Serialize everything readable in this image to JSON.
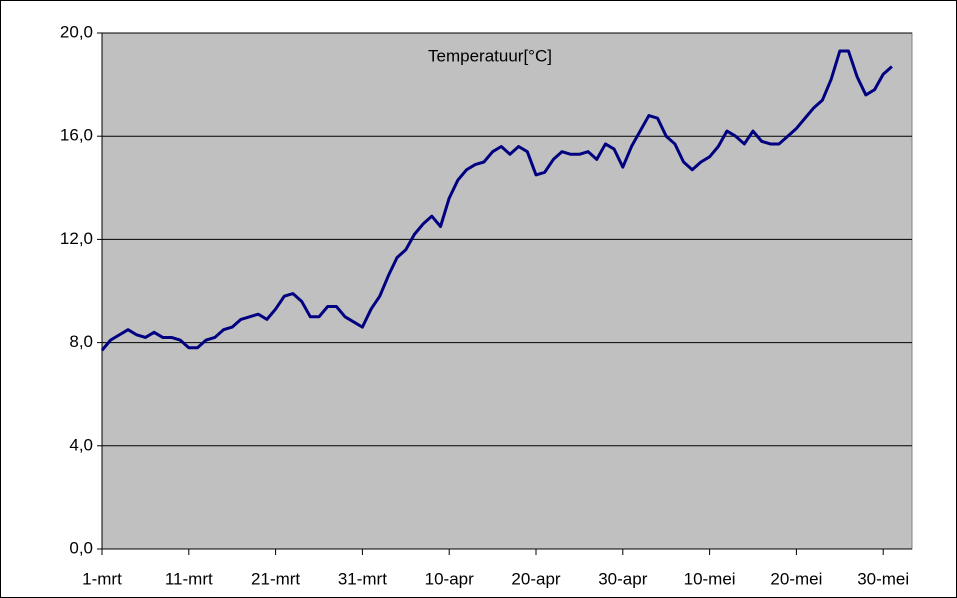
{
  "chart_data": {
    "type": "line",
    "title": "Temperatuur[°C]",
    "categories": [
      "1-mrt",
      null,
      null,
      null,
      null,
      null,
      null,
      null,
      null,
      null,
      "11-mrt",
      null,
      null,
      null,
      null,
      null,
      null,
      null,
      null,
      null,
      "21-mrt",
      null,
      null,
      null,
      null,
      null,
      null,
      null,
      null,
      null,
      "31-mrt",
      null,
      null,
      null,
      null,
      null,
      null,
      null,
      null,
      null,
      "10-apr",
      null,
      null,
      null,
      null,
      null,
      null,
      null,
      null,
      null,
      "20-apr",
      null,
      null,
      null,
      null,
      null,
      null,
      null,
      null,
      null,
      "30-apr",
      null,
      null,
      null,
      null,
      null,
      null,
      null,
      null,
      null,
      "10-mei",
      null,
      null,
      null,
      null,
      null,
      null,
      null,
      null,
      null,
      "20-mei",
      null,
      null,
      null,
      null,
      null,
      null,
      null,
      null,
      null,
      "30-mei",
      null
    ],
    "series": [
      {
        "name": "Temperatuur",
        "color": "#000080",
        "values": [
          7.7,
          8.1,
          8.3,
          8.5,
          8.3,
          8.2,
          8.4,
          8.2,
          8.2,
          8.1,
          7.8,
          7.8,
          8.1,
          8.2,
          8.5,
          8.6,
          8.9,
          9.0,
          9.1,
          8.9,
          9.3,
          9.8,
          9.9,
          9.6,
          9.0,
          9.0,
          9.4,
          9.4,
          9.0,
          8.8,
          8.6,
          9.3,
          9.8,
          10.6,
          11.3,
          11.6,
          12.2,
          12.6,
          12.9,
          12.5,
          13.6,
          14.3,
          14.7,
          14.9,
          15.0,
          15.4,
          15.6,
          15.3,
          15.6,
          15.4,
          14.5,
          14.6,
          15.1,
          15.4,
          15.3,
          15.3,
          15.4,
          15.1,
          15.7,
          15.5,
          14.8,
          15.6,
          16.2,
          16.8,
          16.7,
          16.0,
          15.7,
          15.0,
          14.7,
          15.0,
          15.2,
          15.6,
          16.2,
          16.0,
          15.7,
          16.2,
          15.8,
          15.7,
          15.7,
          16.0,
          16.3,
          16.7,
          17.1,
          17.4,
          18.2,
          19.3,
          19.3,
          18.3,
          17.6,
          17.8,
          18.4,
          18.7
        ]
      }
    ],
    "ylim": [
      0,
      20
    ],
    "yticks": [
      {
        "value": 0,
        "label": "0,0"
      },
      {
        "value": 4,
        "label": "4,0"
      },
      {
        "value": 8,
        "label": "8,0"
      },
      {
        "value": 12,
        "label": "12,0"
      },
      {
        "value": 16,
        "label": "16,0"
      },
      {
        "value": 20,
        "label": "20,0"
      }
    ],
    "grid": true
  }
}
